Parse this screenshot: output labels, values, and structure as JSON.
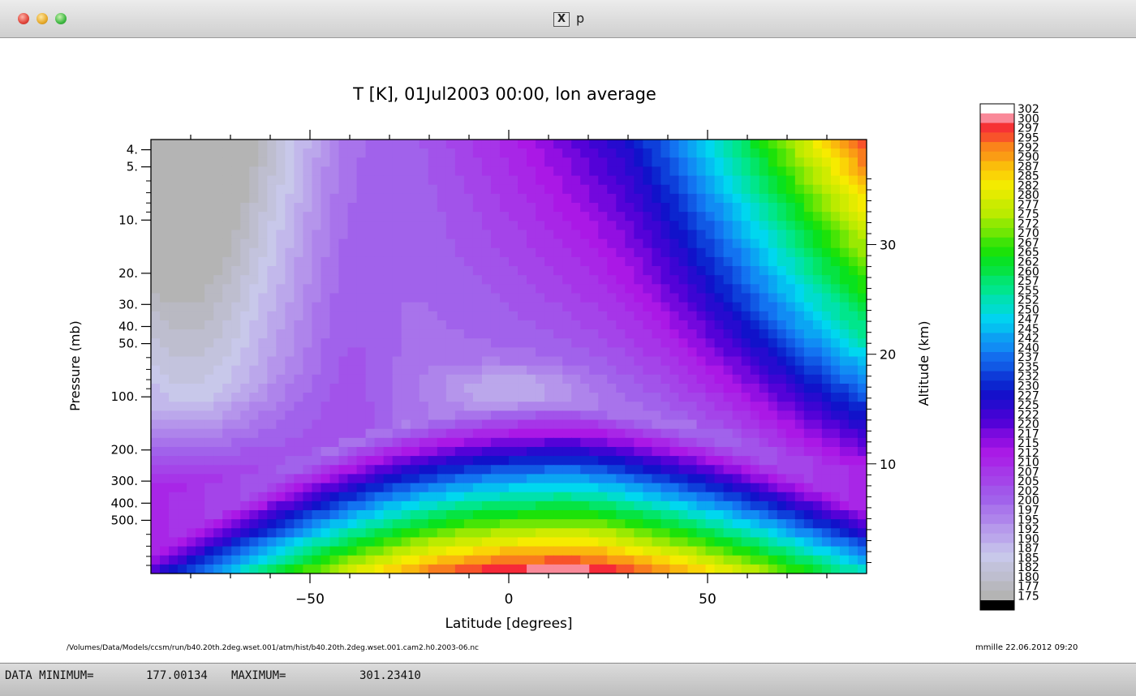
{
  "window": {
    "title": "p",
    "title_icon": "x11-icon"
  },
  "status": {
    "min_label": "DATA MINIMUM=",
    "min_value": "177.00134",
    "max_label": "MAXIMUM=",
    "max_value": "301.23410"
  },
  "chart_data": {
    "type": "heatmap",
    "title": "T [K], 01Jul2003 00:00, lon average",
    "xlabel": "Latitude [degrees]",
    "ylabel": "Pressure (mb)",
    "y2label": "Altitude (km)",
    "xlim": [
      -90,
      90
    ],
    "xticks": [
      -50,
      0,
      50
    ],
    "x_tick_labels": [
      "−50",
      "0",
      "50"
    ],
    "yscale": "log",
    "ylim": [
      1000,
      3.5
    ],
    "yticks": [
      4,
      5,
      10,
      20,
      30,
      40,
      50,
      100,
      200,
      300,
      400,
      500
    ],
    "y_tick_labels": [
      "4.",
      "5.",
      "10.",
      "20.",
      "30.",
      "40.",
      "50.",
      "100.",
      "200.",
      "300.",
      "400.",
      "500."
    ],
    "y2ticks": [
      10,
      20,
      30
    ],
    "y2_tick_labels": [
      "10",
      "20",
      "30"
    ],
    "colorbar": {
      "range": [
        175,
        302
      ],
      "labels": [
        "302",
        "300",
        "297",
        "295",
        "292",
        "290",
        "287",
        "285",
        "282",
        "280",
        "277",
        "275",
        "272",
        "270",
        "267",
        "265",
        "262",
        "260",
        "257",
        "255",
        "252",
        "250",
        "247",
        "245",
        "242",
        "240",
        "237",
        "235",
        "232",
        "230",
        "227",
        "225",
        "222",
        "220",
        "217",
        "215",
        "212",
        "210",
        "207",
        "205",
        "202",
        "200",
        "197",
        "195",
        "192",
        "190",
        "187",
        "185",
        "182",
        "180",
        "177",
        "175"
      ]
    },
    "footer_path": "/Volumes/Data/Models/ccsm/run/b40.20th.2deg.wset.001/atm/hist/b40.20th.2deg.wset.001.cam2.h0.2003-06.nc",
    "footer_stamp": "mmille 22.06.2012 09:20",
    "data_min": 177.00134,
    "data_max": 301.2341
  }
}
